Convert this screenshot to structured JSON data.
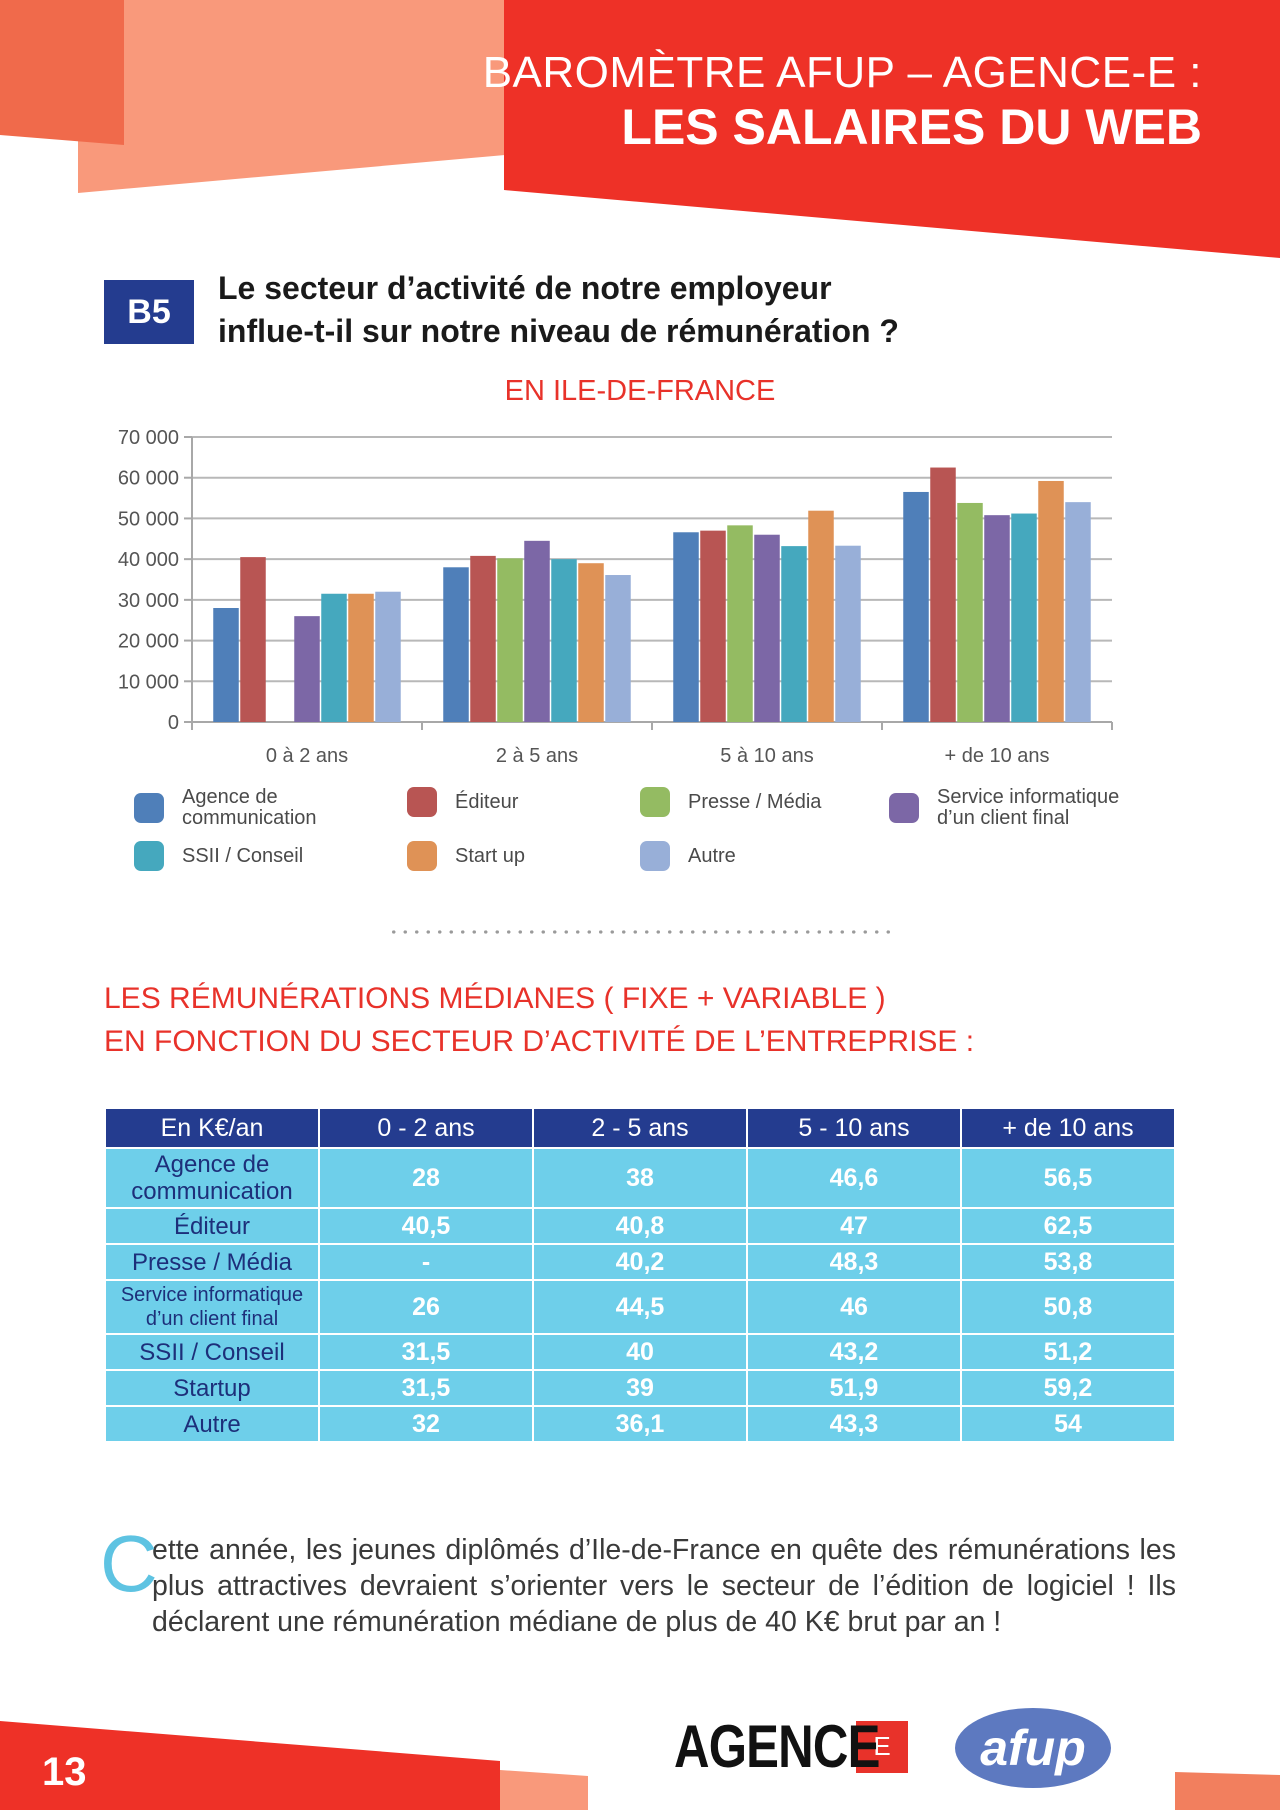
{
  "header": {
    "line1": "BAROMÈTRE AFUP – AGENCE-E :",
    "line2": "LES SALAIRES DU WEB"
  },
  "section_badge": "B5",
  "question": {
    "line1": "Le secteur d’activité de notre employeur",
    "line2": "influe-t-il sur notre niveau de rémunération ?"
  },
  "chart_subtitle": "EN ILE-DE-FRANCE",
  "chart_data": {
    "type": "bar",
    "title": "EN ILE-DE-FRANCE",
    "categories": [
      "0 à 2 ans",
      "2 à 5 ans",
      "5 à 10 ans",
      "+ de 10 ans"
    ],
    "series": [
      {
        "name": "Agence de communication",
        "color": "#4f7fb9",
        "values": [
          28000,
          38000,
          46600,
          56500
        ]
      },
      {
        "name": "Éditeur",
        "color": "#b85553",
        "values": [
          40500,
          40800,
          47000,
          62500
        ]
      },
      {
        "name": "Presse / Média",
        "color": "#94bb62",
        "values": [
          null,
          40200,
          48300,
          53800
        ]
      },
      {
        "name": "Service informatique d’un client final",
        "color": "#7c67a6",
        "values": [
          26000,
          44500,
          46000,
          50800
        ]
      },
      {
        "name": "SSII / Conseil",
        "color": "#45a8be",
        "values": [
          31500,
          40000,
          43200,
          51200
        ]
      },
      {
        "name": "Start up",
        "color": "#df9256",
        "values": [
          31500,
          39000,
          51900,
          59200
        ]
      },
      {
        "name": "Autre",
        "color": "#98afd8",
        "values": [
          32000,
          36100,
          43300,
          54000
        ]
      }
    ],
    "ylim": [
      0,
      70000
    ],
    "yticks": [
      "0",
      "10 000",
      "20 000",
      "30 000",
      "40 000",
      "50 000",
      "60 000",
      "70 000"
    ],
    "grid": true,
    "legend_position": "bottom"
  },
  "legend": [
    {
      "line1": "Agence de",
      "line2": "communication",
      "color": "#4f7fb9"
    },
    {
      "line1": "Éditeur",
      "line2": "",
      "color": "#b85553"
    },
    {
      "line1": "Presse / Média",
      "line2": "",
      "color": "#94bb62"
    },
    {
      "line1": "Service informatique",
      "line2": "d’un client final",
      "color": "#7c67a6"
    },
    {
      "line1": "SSII / Conseil",
      "line2": "",
      "color": "#45a8be"
    },
    {
      "line1": "Start up",
      "line2": "",
      "color": "#df9256"
    },
    {
      "line1": "Autre",
      "line2": "",
      "color": "#98afd8"
    }
  ],
  "section_title": {
    "line1": "LES RÉMUNÉRATIONS MÉDIANES ( FIXE + VARIABLE )",
    "line2": "EN FONCTION DU SECTEUR D’ACTIVITÉ DE L’ENTREPRISE :"
  },
  "table": {
    "headers": [
      "En K€/an",
      "0 - 2 ans",
      "2 - 5 ans",
      "5 - 10 ans",
      "+ de 10 ans"
    ],
    "rows": [
      {
        "label_line1": "Agence de",
        "label_line2": "communication",
        "values": [
          "28",
          "38",
          "46,6",
          "56,5"
        ]
      },
      {
        "label_line1": "Éditeur",
        "label_line2": "",
        "values": [
          "40,5",
          "40,8",
          "47",
          "62,5"
        ]
      },
      {
        "label_line1": "Presse / Média",
        "label_line2": "",
        "values": [
          "-",
          "40,2",
          "48,3",
          "53,8"
        ]
      },
      {
        "label_line1": "Service informatique",
        "label_line2": "d’un client final",
        "values": [
          "26",
          "44,5",
          "46",
          "50,8"
        ]
      },
      {
        "label_line1": "SSII / Conseil",
        "label_line2": "",
        "values": [
          "31,5",
          "40",
          "43,2",
          "51,2"
        ]
      },
      {
        "label_line1": "Startup",
        "label_line2": "",
        "values": [
          "31,5",
          "39",
          "51,9",
          "59,2"
        ]
      },
      {
        "label_line1": "Autre",
        "label_line2": "",
        "values": [
          "32",
          "36,1",
          "43,3",
          "54"
        ]
      }
    ]
  },
  "paragraph": {
    "drop_cap": "C",
    "text_rest": "ette année, les jeunes diplômés d’Ile-de-France en quête des rémunérations les plus attractives devraient s’orienter vers le secteur de l’édition de logiciel ! Ils déclarent une rémunération médiane de plus de 40 K€ brut par an !"
  },
  "footer": {
    "page_number": "13",
    "logo_agence": "AGENCE",
    "logo_agence_mark": "E",
    "logo_afup": "afup"
  },
  "colors": {
    "accent_red": "#e8322a",
    "salmon": "#f9997b",
    "navy": "#243c8f",
    "table_cyan": "#6ecfea"
  }
}
